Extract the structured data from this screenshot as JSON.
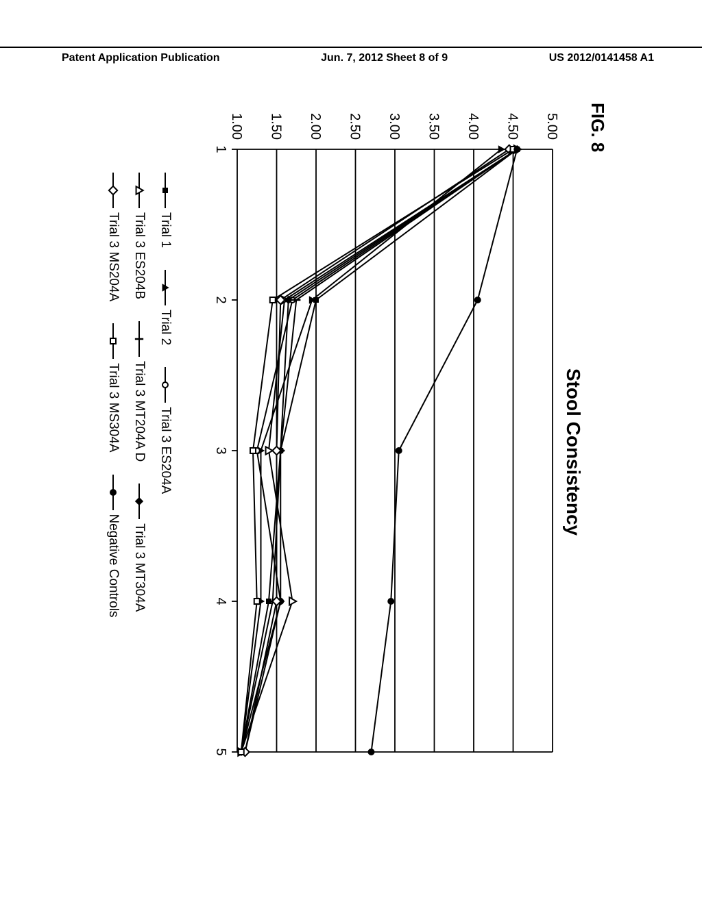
{
  "header": {
    "left": "Patent Application Publication",
    "center": "Jun. 7, 2012   Sheet 8 of 9",
    "right": "US 2012/0141458 A1"
  },
  "figure": {
    "label": "FIG. 8",
    "title": "Stool Consistency",
    "y_axis": {
      "min": 1.0,
      "max": 5.0,
      "ticks": [
        "5.00",
        "4.50",
        "4.00",
        "3.50",
        "3.00",
        "2.50",
        "2.00",
        "1.50",
        "1.00"
      ],
      "tick_values": [
        5.0,
        4.5,
        4.0,
        3.5,
        3.0,
        2.5,
        2.0,
        1.5,
        1.0
      ]
    },
    "x_axis": {
      "min": 1,
      "max": 5,
      "ticks": [
        "1",
        "2",
        "3",
        "4",
        "5"
      ],
      "tick_values": [
        1,
        2,
        3,
        4,
        5
      ]
    },
    "grid_color": "#000000",
    "line_color": "#000000",
    "background": "#ffffff",
    "line_width": 2,
    "marker_size": 8,
    "series": [
      {
        "name": "Trial 1",
        "marker": "filled_square",
        "points": [
          [
            1,
            4.55
          ],
          [
            2,
            2.0
          ],
          [
            3,
            1.55
          ],
          [
            4,
            1.4
          ],
          [
            5,
            1.05
          ]
        ]
      },
      {
        "name": "Trial 2",
        "marker": "filled_triangle",
        "points": [
          [
            1,
            4.35
          ],
          [
            2,
            1.95
          ],
          [
            3,
            1.3
          ],
          [
            4,
            1.3
          ],
          [
            5,
            1.05
          ]
        ]
      },
      {
        "name": "Trial 3 ES204A",
        "marker": "open_circle",
        "points": [
          [
            1,
            4.55
          ],
          [
            2,
            1.7
          ],
          [
            3,
            1.25
          ],
          [
            4,
            1.55
          ],
          [
            5,
            1.1
          ]
        ]
      },
      {
        "name": "Trial 3 ES204B",
        "marker": "open_triangle",
        "points": [
          [
            1,
            4.55
          ],
          [
            2,
            1.6
          ],
          [
            3,
            1.4
          ],
          [
            4,
            1.7
          ],
          [
            5,
            1.05
          ]
        ]
      },
      {
        "name": "Trial 3 MT204A D",
        "marker": "vbar",
        "points": [
          [
            1,
            4.55
          ],
          [
            2,
            1.75
          ],
          [
            3,
            1.55
          ],
          [
            4,
            1.45
          ],
          [
            5,
            1.05
          ]
        ]
      },
      {
        "name": "Trial 3 MT304A",
        "marker": "filled_diamond",
        "points": [
          [
            1,
            4.55
          ],
          [
            2,
            1.65
          ],
          [
            3,
            1.55
          ],
          [
            4,
            1.55
          ],
          [
            5,
            1.05
          ]
        ]
      },
      {
        "name": "Trial 3 MS204A",
        "marker": "open_diamond",
        "points": [
          [
            1,
            4.45
          ],
          [
            2,
            1.55
          ],
          [
            3,
            1.5
          ],
          [
            4,
            1.5
          ],
          [
            5,
            1.1
          ]
        ]
      },
      {
        "name": "Trial 3 MS304A",
        "marker": "open_square",
        "points": [
          [
            1,
            4.5
          ],
          [
            2,
            1.45
          ],
          [
            3,
            1.2
          ],
          [
            4,
            1.25
          ],
          [
            5,
            1.05
          ]
        ]
      },
      {
        "name": "Negative Controls",
        "marker": "filled_circle",
        "points": [
          [
            1,
            4.55
          ],
          [
            2,
            4.05
          ],
          [
            3,
            3.05
          ],
          [
            4,
            2.95
          ],
          [
            5,
            2.7
          ]
        ]
      }
    ],
    "legend_layout": [
      [
        "Trial 1",
        "Trial 2",
        "Trial 3 ES204A"
      ],
      [
        "Trial 3 ES204B",
        "Trial 3 MT204A D",
        "Trial 3 MT304A"
      ],
      [
        "Trial 3 MS204A",
        "Trial 3 MS304A",
        "Negative Controls"
      ]
    ]
  }
}
